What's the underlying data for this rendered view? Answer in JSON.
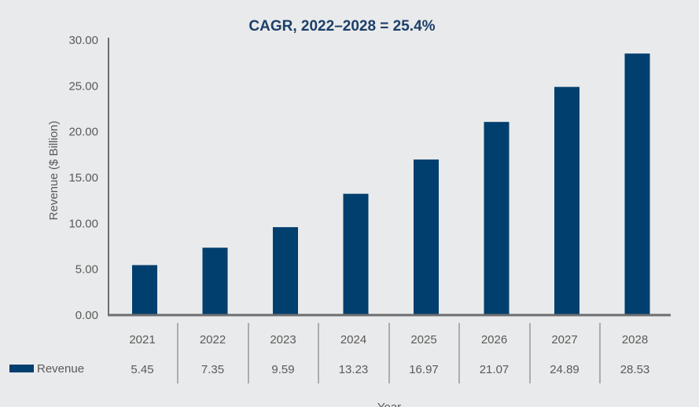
{
  "chart_data": {
    "type": "bar",
    "title": "CAGR, 2022–2028 = 25.4%",
    "xlabel": "Year",
    "ylabel": "Revenue ($ Billion)",
    "ylim": [
      0,
      30
    ],
    "yticks": [
      "0.00",
      "5.00",
      "10.00",
      "15.00",
      "20.00",
      "25.00",
      "30.00"
    ],
    "categories": [
      "2021",
      "2022",
      "2023",
      "2024",
      "2025",
      "2026",
      "2027",
      "2028"
    ],
    "series": [
      {
        "name": "Revenue",
        "values": [
          5.45,
          7.35,
          9.59,
          13.23,
          16.97,
          21.07,
          24.89,
          28.53
        ],
        "labels": [
          "5.45",
          "7.35",
          "9.59",
          "13.23",
          "16.97",
          "21.07",
          "24.89",
          "28.53"
        ],
        "color": "#003f6e"
      }
    ],
    "grid": false,
    "legend": "data-table-left"
  }
}
